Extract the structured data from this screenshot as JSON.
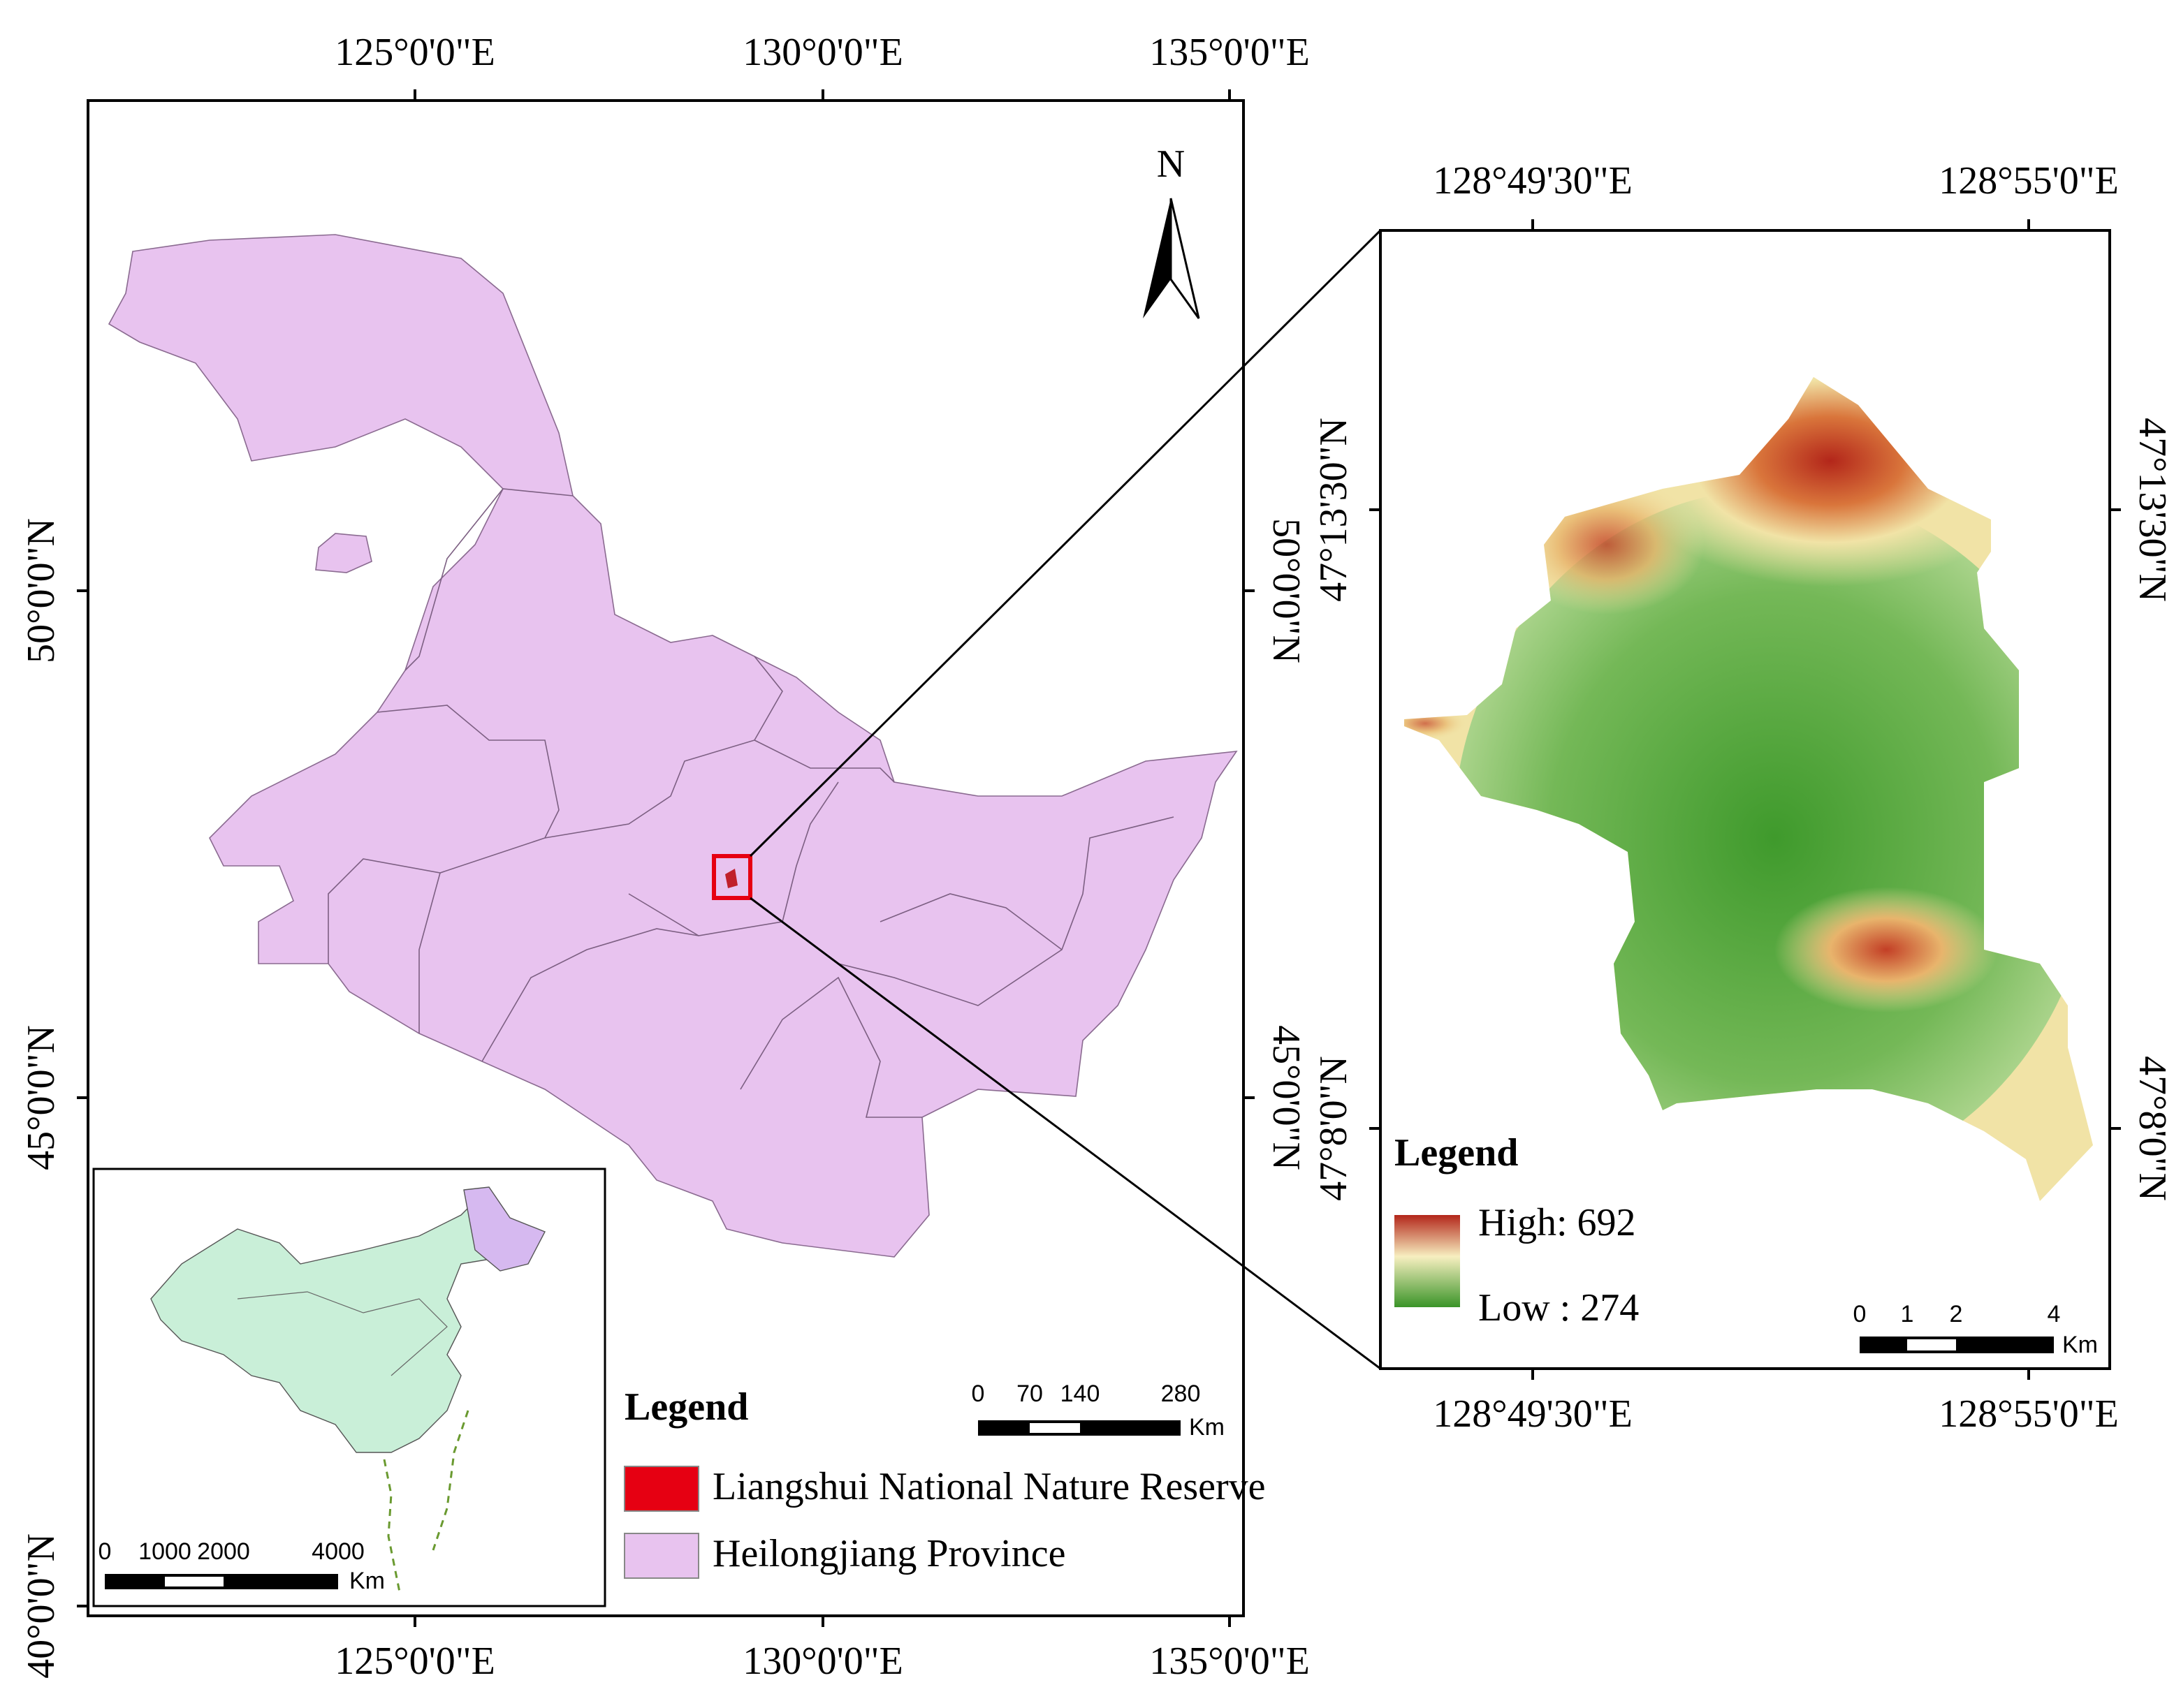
{
  "left_map": {
    "top_ticks": [
      "125°0'0\"E",
      "130°0'0\"E",
      "135°0'0\"E"
    ],
    "bottom_ticks": [
      "125°0'0\"E",
      "130°0'0\"E",
      "135°0'0\"E"
    ],
    "left_ticks": [
      "50°0'0\"N",
      "45°0'0\"N",
      "40°0'0\"N"
    ],
    "right_ticks": [
      "50°0'0\"N",
      "45°0'0\"N"
    ],
    "north": "N",
    "legend": {
      "title": "Legend",
      "items": [
        "Liangshui National Nature Reserve",
        "Heilongjiang Province"
      ]
    },
    "scale_bar": {
      "labels": [
        "0",
        "70",
        "140",
        "280"
      ],
      "unit": "Km"
    },
    "inset": {
      "scale_bar": {
        "labels": [
          "0",
          "1000",
          "2000",
          "4000"
        ],
        "unit": "Km"
      }
    }
  },
  "right_map": {
    "top_ticks": [
      "128°49'30\"E",
      "128°55'0\"E"
    ],
    "bottom_ticks": [
      "128°49'30\"E",
      "128°55'0\"E"
    ],
    "left_ticks": [
      "47°13'30\"N",
      "47°8'0\"N"
    ],
    "right_ticks": [
      "47°13'30\"N",
      "47°8'0\"N"
    ],
    "legend": {
      "title": "Legend",
      "high": "High: 692",
      "low": "Low : 274"
    },
    "scale_bar": {
      "labels": [
        "0",
        "1",
        "2",
        "4"
      ],
      "unit": "Km"
    }
  }
}
